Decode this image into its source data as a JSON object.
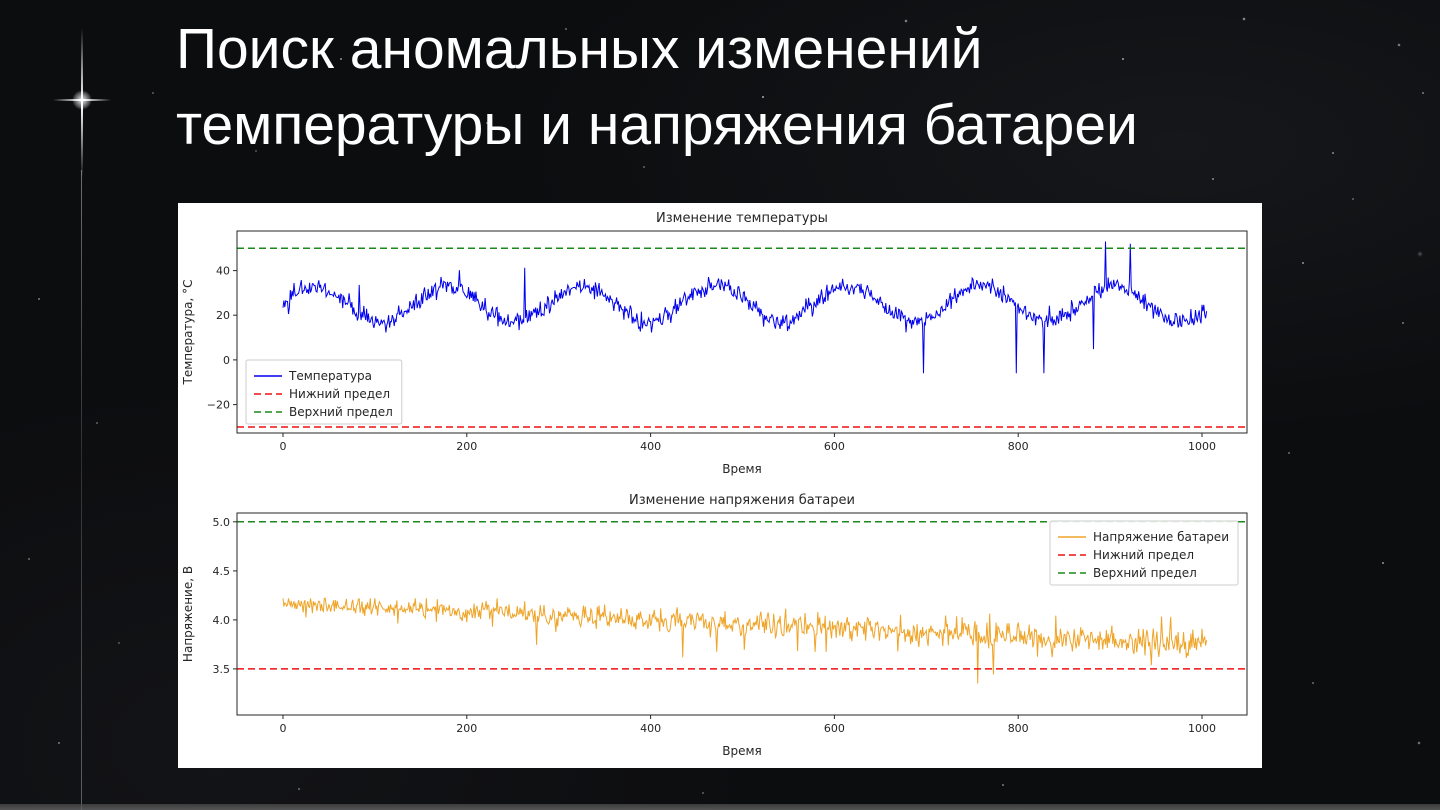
{
  "slide": {
    "title": "Поиск аномальных изменений температуры и напряжения батареи",
    "title_color": "#ffffff",
    "background_color": "#0c0d0f"
  },
  "colors": {
    "temperature_line": "#0000ee",
    "voltage_line": "#efa428",
    "lower_limit": "#ee1111",
    "upper_limit": "#1a8a1a",
    "chart_text": "#262626",
    "panel_background": "#ffffff"
  },
  "chart_data": [
    {
      "type": "line",
      "title": "Изменение температуры",
      "xlabel": "Время",
      "ylabel": "Температура, °C",
      "xlim": [
        -50,
        1049
      ],
      "ylim": [
        -32.7,
        57.7
      ],
      "xticks": [
        0,
        200,
        400,
        600,
        800,
        1000
      ],
      "yticks": [
        -20,
        0,
        20,
        40
      ],
      "ytick_labels": [
        "−20",
        "0",
        "20",
        "40"
      ],
      "grid": false,
      "legend_position": "lower-left",
      "legend": [
        {
          "label": "Температура",
          "color": "#0000ee",
          "dash": false
        },
        {
          "label": "Нижний предел",
          "color": "#ee1111",
          "dash": true
        },
        {
          "label": "Верхний предел",
          "color": "#1a8a1a",
          "dash": true
        }
      ],
      "thresholds": [
        {
          "name": "Нижний предел",
          "value": -30,
          "color": "#ee1111"
        },
        {
          "name": "Верхний предел",
          "value": 50,
          "color": "#1a8a1a"
        }
      ],
      "series": [
        {
          "name": "Температура",
          "color": "#0000ee",
          "seed": 42,
          "summary": "Синусоидальные колебания около 25°C (примерно 13–37°C, период ~145 отсчётов) с шумом и редкими одиночными выбросами вверх до ~52°C и вниз до ~−6°C",
          "gen": {
            "n": 1005,
            "base": 25,
            "amplitude": 8,
            "period": 145,
            "phase": 0.05,
            "trend": 0,
            "noise_sd": 2.1,
            "noise_growth": 0,
            "spikes": {
              "up_prob": 0.006,
              "up_min": 8,
              "up_max": 26,
              "down_prob": 0.006,
              "down_min": 12,
              "down_max": 40,
              "scale_with_x": false
            },
            "min": -6,
            "max": 53
          }
        }
      ]
    },
    {
      "type": "line",
      "title": "Изменение напряжения батареи",
      "xlabel": "Время",
      "ylabel": "Напряжение, В",
      "xlim": [
        -50,
        1049
      ],
      "ylim": [
        3.03,
        5.09
      ],
      "xticks": [
        0,
        200,
        400,
        600,
        800,
        1000
      ],
      "yticks": [
        3.5,
        4.0,
        4.5,
        5.0
      ],
      "ytick_labels": [
        "3.5",
        "4.0",
        "4.5",
        "5.0"
      ],
      "grid": false,
      "legend_position": "upper-right",
      "legend": [
        {
          "label": "Напряжение батареи",
          "color": "#efa428",
          "dash": false
        },
        {
          "label": "Нижний предел",
          "color": "#ee1111",
          "dash": true
        },
        {
          "label": "Верхний предел",
          "color": "#1a8a1a",
          "dash": true
        }
      ],
      "thresholds": [
        {
          "name": "Нижний предел",
          "value": 3.5,
          "color": "#ee1111"
        },
        {
          "name": "Верхний предел",
          "value": 5.0,
          "color": "#1a8a1a"
        }
      ],
      "series": [
        {
          "name": "Напряжение батареи",
          "color": "#efa428",
          "seed": 7,
          "summary": "Напряжение ~4.17 В в начале, плавно снижается до ~3.75 В к отсчёту 1000; шум растёт со временем; частые одиночные провалы вниз, к концу до ~3.2 В (ниже нижнего предела 3.5 В)",
          "gen": {
            "n": 1005,
            "base": 4.17,
            "amplitude": 0,
            "period": 1,
            "phase": 0,
            "trend": -0.00042,
            "noise_sd": 0.04,
            "noise_growth": 4e-05,
            "spikes": {
              "up_prob": 0,
              "up_min": 0,
              "up_max": 0,
              "down_prob": 0.018,
              "down_min": 0.06,
              "down_max": 0.58,
              "scale_with_x": true
            },
            "min": 3.15,
            "max": 4.22
          }
        }
      ]
    }
  ]
}
